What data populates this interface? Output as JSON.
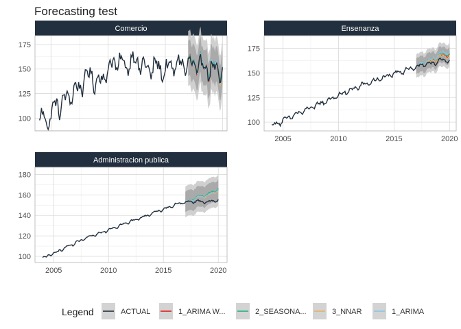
{
  "title": "Forecasting test",
  "colors": {
    "strip_bg": "#222f3e",
    "strip_text": "#ffffff",
    "grid": "#d9d9d9",
    "panel_border": "#b3b3b3",
    "ribbon_outer": "#c8c8c8",
    "ribbon_inner": "#9e9e9e",
    "axis_text": "#4d4d4d"
  },
  "chart_data": [
    {
      "type": "line",
      "panel": "Comercio",
      "xlim": [
        2003.6,
        2020.4
      ],
      "ylim": [
        87,
        184
      ],
      "yticks": [
        100,
        125,
        150,
        175
      ],
      "xticks": [
        2005,
        2010,
        2015,
        2020
      ],
      "show_x_labels": false,
      "anchors": [
        [
          2004.0,
          92
        ],
        [
          2004.2,
          104
        ],
        [
          2004.5,
          98
        ],
        [
          2005.0,
          100
        ],
        [
          2005.3,
          114
        ],
        [
          2005.7,
          112
        ],
        [
          2006.2,
          118
        ],
        [
          2006.7,
          124
        ],
        [
          2007.0,
          128
        ],
        [
          2007.5,
          130
        ],
        [
          2008.0,
          142
        ],
        [
          2008.5,
          144
        ],
        [
          2009.0,
          136
        ],
        [
          2009.5,
          140
        ],
        [
          2010.0,
          150
        ],
        [
          2010.5,
          156
        ],
        [
          2011.0,
          158
        ],
        [
          2011.5,
          152
        ],
        [
          2012.0,
          160
        ],
        [
          2012.5,
          157
        ],
        [
          2013.0,
          155
        ],
        [
          2013.5,
          148
        ],
        [
          2014.0,
          154
        ],
        [
          2014.5,
          150
        ],
        [
          2015.0,
          148
        ],
        [
          2015.5,
          152
        ],
        [
          2016.0,
          156
        ],
        [
          2016.5,
          154
        ],
        [
          2017.0,
          155
        ],
        [
          2017.5,
          152
        ],
        [
          2018.0,
          154
        ],
        [
          2018.5,
          152
        ],
        [
          2019.0,
          150
        ],
        [
          2019.5,
          148
        ],
        [
          2020.0,
          145
        ]
      ],
      "season_amp": 11,
      "actual_end": 2020.0,
      "forecast_start": 2017.0,
      "forecast_end": 2020.0,
      "band_inner": 18,
      "band_outer": 28,
      "forecasts": [
        {
          "color": "#e41a1c",
          "offset": 0
        },
        {
          "color": "#1fb27e",
          "offset": 2
        },
        {
          "color": "#e4b363",
          "offset": -1
        },
        {
          "color": "#86c5e8",
          "offset": 1
        }
      ]
    },
    {
      "type": "line",
      "panel": "Ensenanza",
      "xlim": [
        2003.3,
        2020.6
      ],
      "ylim": [
        91,
        188
      ],
      "yticks": [
        100,
        125,
        150,
        175
      ],
      "xticks": [
        2005,
        2010,
        2015,
        2020
      ],
      "show_x_labels": true,
      "anchors": [
        [
          2004.0,
          96
        ],
        [
          2006.0,
          107
        ],
        [
          2008.0,
          117
        ],
        [
          2010.0,
          127
        ],
        [
          2012.0,
          137
        ],
        [
          2014.0,
          145
        ],
        [
          2016.0,
          153
        ],
        [
          2017.0,
          156
        ],
        [
          2018.0,
          159
        ],
        [
          2019.0,
          162
        ],
        [
          2020.0,
          163
        ]
      ],
      "season_amp": 3,
      "actual_end": 2020.0,
      "forecast_start": 2017.0,
      "forecast_end": 2020.0,
      "band_inner": 8,
      "band_outer": 12,
      "forecasts": [
        {
          "color": "#e41a1c",
          "offset": 6
        },
        {
          "color": "#1fb27e",
          "offset": 8
        },
        {
          "color": "#e4b363",
          "offset": 5
        },
        {
          "color": "#86c5e8",
          "offset": 9
        }
      ]
    },
    {
      "type": "line",
      "panel": "Administracion publica",
      "xlim": [
        2003.3,
        2020.8
      ],
      "ylim": [
        94,
        187
      ],
      "yticks": [
        100,
        120,
        140,
        160,
        180
      ],
      "xticks": [
        2005,
        2010,
        2015,
        2020
      ],
      "show_x_labels": true,
      "anchors": [
        [
          2004.0,
          98
        ],
        [
          2006.0,
          108
        ],
        [
          2008.0,
          118
        ],
        [
          2010.0,
          126
        ],
        [
          2012.0,
          134
        ],
        [
          2014.0,
          142
        ],
        [
          2016.0,
          150
        ],
        [
          2017.0,
          153
        ],
        [
          2018.0,
          154
        ],
        [
          2019.0,
          153
        ],
        [
          2020.0,
          155
        ]
      ],
      "season_amp": 1.5,
      "actual_end": 2020.0,
      "forecast_start": 2017.0,
      "forecast_end": 2020.0,
      "band_inner": 10,
      "band_outer": 15,
      "forecasts": [
        {
          "color": "#e41a1c",
          "offset": 10
        },
        {
          "color": "#1fb27e",
          "offset": 11
        },
        {
          "color": "#e4b363",
          "offset": 9
        },
        {
          "color": "#86c5e8",
          "offset": 10
        }
      ]
    }
  ],
  "legend": {
    "title": "Legend",
    "placement": "bottom",
    "entries": [
      {
        "label": "ACTUAL",
        "color": "#222f3e"
      },
      {
        "label": "1_ARIMA W...",
        "color": "#e41a1c"
      },
      {
        "label": "2_SEASONA...",
        "color": "#1fb27e"
      },
      {
        "label": "3_NNAR",
        "color": "#e4b363"
      },
      {
        "label": "1_ARIMA",
        "color": "#86c5e8"
      }
    ]
  }
}
